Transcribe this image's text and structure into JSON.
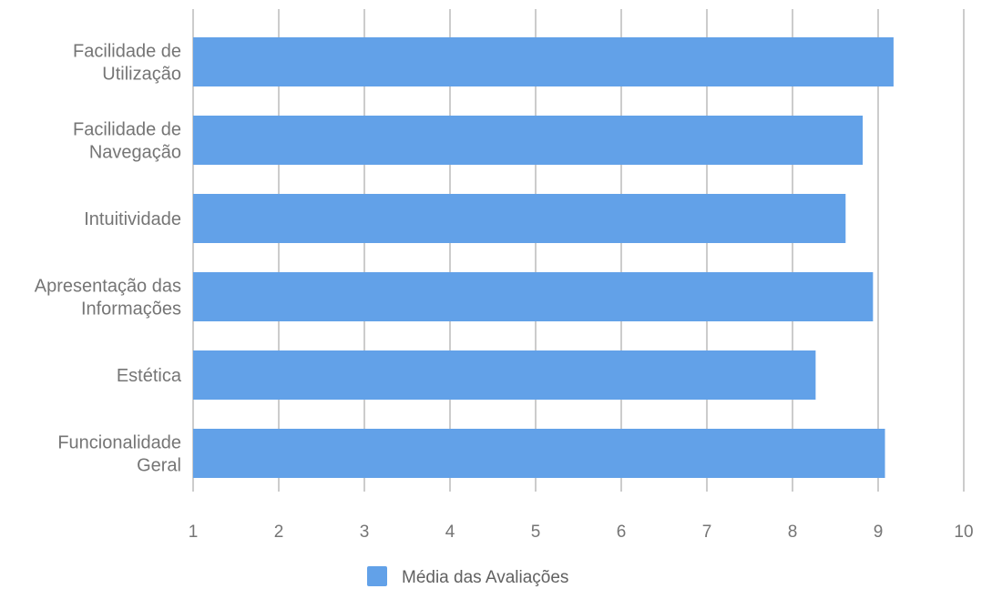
{
  "chart_data": {
    "type": "bar",
    "orientation": "horizontal",
    "categories": [
      [
        "Facilidade de",
        "Utilização"
      ],
      [
        "Facilidade de",
        "Navegação"
      ],
      [
        "Intuitividade"
      ],
      [
        "Apresentação das",
        "Informações"
      ],
      [
        "Estética"
      ],
      [
        "Funcionalidade",
        "Geral"
      ]
    ],
    "series": [
      {
        "name": "Média das Avaliações",
        "color": "#62a1e8",
        "values": [
          9.18,
          8.82,
          8.62,
          8.94,
          8.27,
          9.08
        ]
      }
    ],
    "xlim": [
      1,
      10
    ],
    "xticks": [
      "1",
      "2",
      "3",
      "4",
      "5",
      "6",
      "7",
      "8",
      "9",
      "10"
    ],
    "grid": true,
    "legend_position": "bottom",
    "title": "",
    "xlabel": "",
    "ylabel": ""
  }
}
